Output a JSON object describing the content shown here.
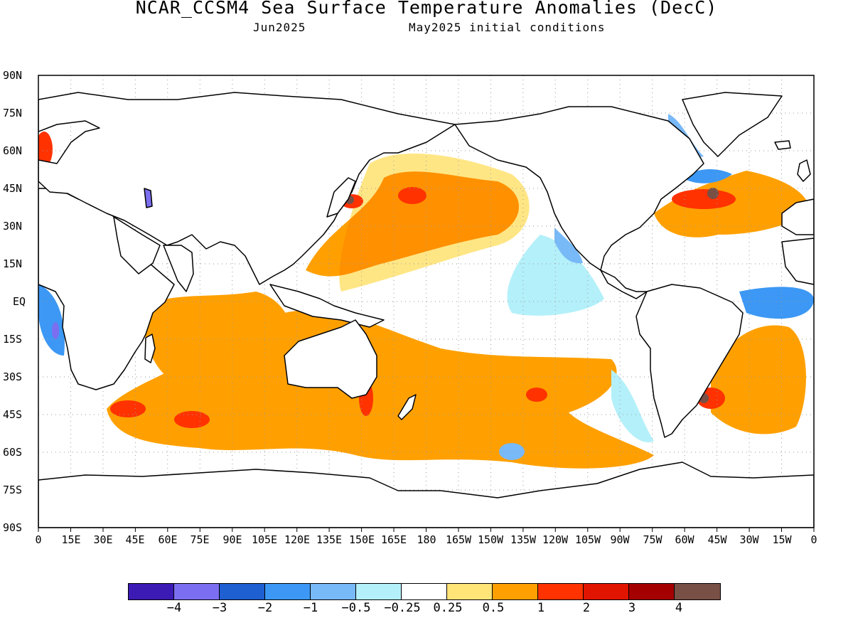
{
  "title": "NCAR_CCSM4 Sea Surface Temperature Anomalies (DecC)",
  "subtitle_left": "Jun2025",
  "subtitle_right": "May2025 initial conditions",
  "lat_labels": [
    "90N",
    "75N",
    "60N",
    "45N",
    "30N",
    "15N",
    "EQ",
    "15S",
    "30S",
    "45S",
    "60S",
    "75S",
    "90S"
  ],
  "lon_labels": [
    "0",
    "15E",
    "30E",
    "45E",
    "60E",
    "75E",
    "90E",
    "105E",
    "120E",
    "135E",
    "150E",
    "165E",
    "180",
    "165W",
    "150W",
    "135W",
    "120W",
    "105W",
    "90W",
    "75W",
    "60W",
    "45W",
    "30W",
    "15W",
    "0"
  ],
  "colorbar": {
    "colors": [
      "#3c1ab4",
      "#7c6ef0",
      "#1e5fd2",
      "#3c98f4",
      "#78b9f8",
      "#b4f0fa",
      "#ffffff",
      "#ffe478",
      "#ffa000",
      "#ff3200",
      "#e11400",
      "#a50000",
      "#785046"
    ],
    "labels": [
      "−4",
      "−3",
      "−2",
      "−1",
      "−0.5",
      "−0.25",
      "0.25",
      "0.5",
      "1",
      "2",
      "3",
      "4"
    ]
  },
  "colors": {
    "land": "#ffffff",
    "coast": "#000000",
    "grid": "#9a9a9a"
  }
}
